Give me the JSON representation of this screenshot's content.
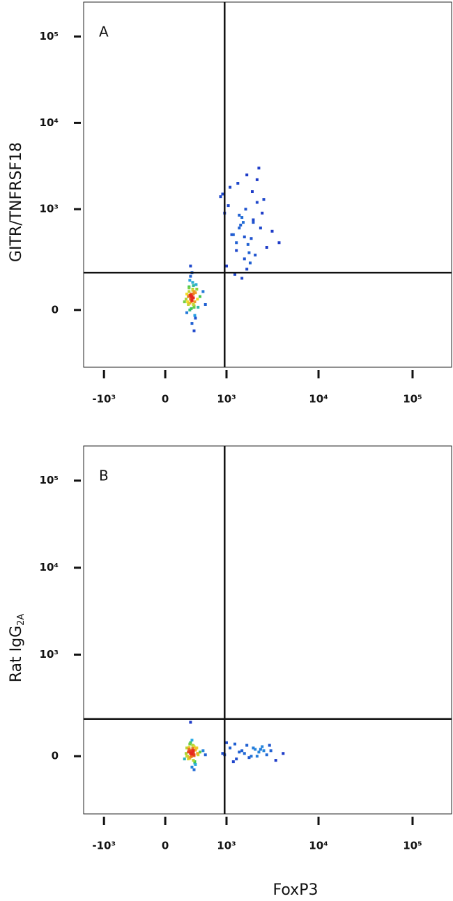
{
  "chart_data": [
    {
      "type": "scatter",
      "panel_label": "A",
      "y_label": "GITR/TNFRSF18",
      "xscale": "biexponential",
      "yscale": "biexponential",
      "xlim": [
        -1700,
        260000
      ],
      "ylim": [
        -300,
        250000
      ],
      "xticks": [
        {
          "value": -1000,
          "label": "-10³"
        },
        0,
        {
          "value": 1000,
          "label": "10³"
        },
        {
          "value": 10000,
          "label": "10⁴"
        },
        {
          "value": 100000,
          "label": "10⁵"
        }
      ],
      "yticks": [
        0,
        {
          "value": 1000,
          "label": "10³"
        },
        {
          "value": 10000,
          "label": "10⁴"
        },
        {
          "value": 100000,
          "label": "10⁵"
        }
      ],
      "quadrant_gate": {
        "x": 950,
        "y": 160
      },
      "series": [
        {
          "x": [
            310,
            350,
            280,
            400,
            260,
            330,
            370,
            290,
            420,
            360,
            300,
            340,
            250,
            380,
            320,
            270,
            450,
            310,
            350,
            390,
            330,
            290,
            360,
            300,
            410,
            340,
            280,
            320,
            370,
            260,
            350,
            310,
            330,
            380,
            300,
            360,
            340,
            290,
            320,
            350,
            500,
            230,
            540,
            330,
            310,
            360,
            340,
            300,
            320,
            330
          ],
          "y": [
            40,
            60,
            20,
            80,
            -10,
            50,
            30,
            90,
            10,
            70,
            0,
            110,
            40,
            -30,
            60,
            30,
            50,
            140,
            20,
            100,
            -50,
            70,
            10,
            120,
            40,
            80,
            50,
            30,
            -20,
            60,
            45,
            55,
            35,
            65,
            25,
            15,
            75,
            85,
            5,
            95,
            70,
            30,
            20,
            160,
            200,
            -80,
            45,
            55,
            50,
            40
          ]
        },
        {
          "x": [
            1200,
            1500,
            1800,
            2200,
            1000,
            1400,
            2500,
            1700,
            1300,
            2000,
            900,
            1600,
            2800,
            1100,
            1900,
            2300,
            1450,
            1250,
            3200,
            1650,
            2100,
            1350,
            950,
            1750,
            2600,
            1550,
            1850,
            1150,
            2400,
            3800,
            1050,
            1950,
            1700,
            1400,
            2200,
            1300,
            1600,
            2000,
            850,
            1500
          ],
          "y": [
            500,
            800,
            300,
            1200,
            200,
            600,
            900,
            2500,
            400,
            700,
            1500,
            250,
            350,
            1800,
            450,
            3000,
            650,
            150,
            550,
            1000,
            280,
            2000,
            900,
            380,
            1300,
            700,
            220,
            500,
            600,
            400,
            1100,
            1600,
            180,
            850,
            2200,
            320,
            470,
            750,
            1400,
            130
          ]
        }
      ]
    },
    {
      "type": "scatter",
      "panel_label": "B",
      "y_label": "Rat IgG",
      "y_label_subscript": "2A",
      "x_label": "FoxP3",
      "xscale": "biexponential",
      "yscale": "biexponential",
      "xlim": [
        -1700,
        260000
      ],
      "ylim": [
        -300,
        250000
      ],
      "xticks": [
        {
          "value": -1000,
          "label": "-10³"
        },
        0,
        {
          "value": 1000,
          "label": "10³"
        },
        {
          "value": 10000,
          "label": "10⁴"
        },
        {
          "value": 100000,
          "label": "10⁵"
        }
      ],
      "yticks": [
        0,
        {
          "value": 1000,
          "label": "10³"
        },
        {
          "value": 10000,
          "label": "10⁴"
        },
        {
          "value": 100000,
          "label": "10⁵"
        }
      ],
      "quadrant_gate": {
        "x": 950,
        "y": 158
      },
      "series": [
        {
          "x": [
            310,
            350,
            280,
            400,
            260,
            330,
            370,
            290,
            420,
            360,
            300,
            340,
            250,
            380,
            320,
            270,
            450,
            310,
            350,
            390,
            330,
            290,
            360,
            300,
            410,
            340,
            280,
            320,
            370,
            260,
            350,
            310,
            330,
            380,
            300,
            360,
            340,
            290,
            320,
            350,
            500,
            230,
            540,
            330,
            310,
            360,
            340,
            300,
            320,
            330
          ],
          "y": [
            10,
            20,
            -10,
            30,
            0,
            15,
            -20,
            25,
            5,
            35,
            -5,
            40,
            10,
            -30,
            20,
            0,
            15,
            50,
            -15,
            30,
            -40,
            25,
            5,
            45,
            10,
            20,
            15,
            0,
            -25,
            30,
            12,
            18,
            8,
            22,
            -8,
            2,
            28,
            32,
            -2,
            38,
            20,
            -10,
            5,
            60,
            140,
            -50,
            14,
            16,
            12,
            10
          ]
        },
        {
          "x": [
            900,
            1100,
            1300,
            1500,
            1700,
            1900,
            2100,
            2300,
            2500,
            2800,
            3100,
            3500,
            4200,
            1000,
            1200,
            1600,
            2000,
            2200,
            2600,
            3000,
            1400,
            1800,
            2400,
            950,
            1250
          ],
          "y": [
            10,
            30,
            -10,
            20,
            40,
            0,
            25,
            15,
            35,
            5,
            20,
            -15,
            10,
            50,
            -20,
            10,
            30,
            0,
            20,
            40,
            15,
            -5,
            25,
            5,
            45
          ]
        }
      ]
    }
  ]
}
